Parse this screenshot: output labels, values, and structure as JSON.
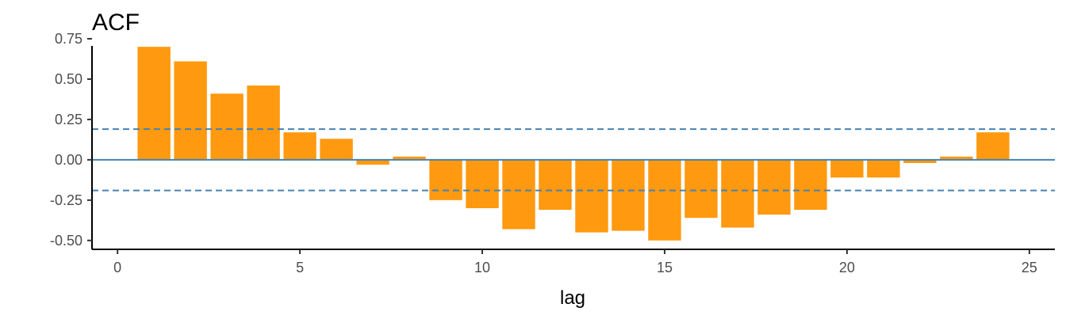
{
  "chart_data": {
    "type": "bar",
    "title": "ACF",
    "xlabel": "lag",
    "ylabel": "",
    "x": [
      1,
      2,
      3,
      4,
      5,
      6,
      7,
      8,
      9,
      10,
      11,
      12,
      13,
      14,
      15,
      16,
      17,
      18,
      19,
      20,
      21,
      22,
      23,
      24
    ],
    "values": [
      0.7,
      0.61,
      0.41,
      0.46,
      0.17,
      0.13,
      -0.03,
      0.02,
      -0.25,
      -0.3,
      -0.43,
      -0.31,
      -0.45,
      -0.44,
      -0.5,
      -0.36,
      -0.42,
      -0.34,
      -0.31,
      -0.11,
      -0.11,
      -0.02,
      0.02,
      0.17
    ],
    "xlim": [
      -0.7,
      25.7
    ],
    "ylim": [
      -0.555,
      0.745
    ],
    "xticks": [
      0,
      5,
      10,
      15,
      20,
      25
    ],
    "xtick_labels": [
      "0",
      "5",
      "10",
      "15",
      "20",
      "25"
    ],
    "yticks": [
      0.75,
      0.5,
      0.25,
      0,
      -0.25,
      -0.5
    ],
    "ytick_labels": [
      "0.75",
      "0.50",
      "0.25",
      "0.00",
      "-0.25",
      "-0.50"
    ],
    "confidence_band": 0.19,
    "grid": false,
    "colors": {
      "bar": "#FF990F",
      "zero_line": "#4682B4",
      "band_line": "#4682B4"
    }
  }
}
